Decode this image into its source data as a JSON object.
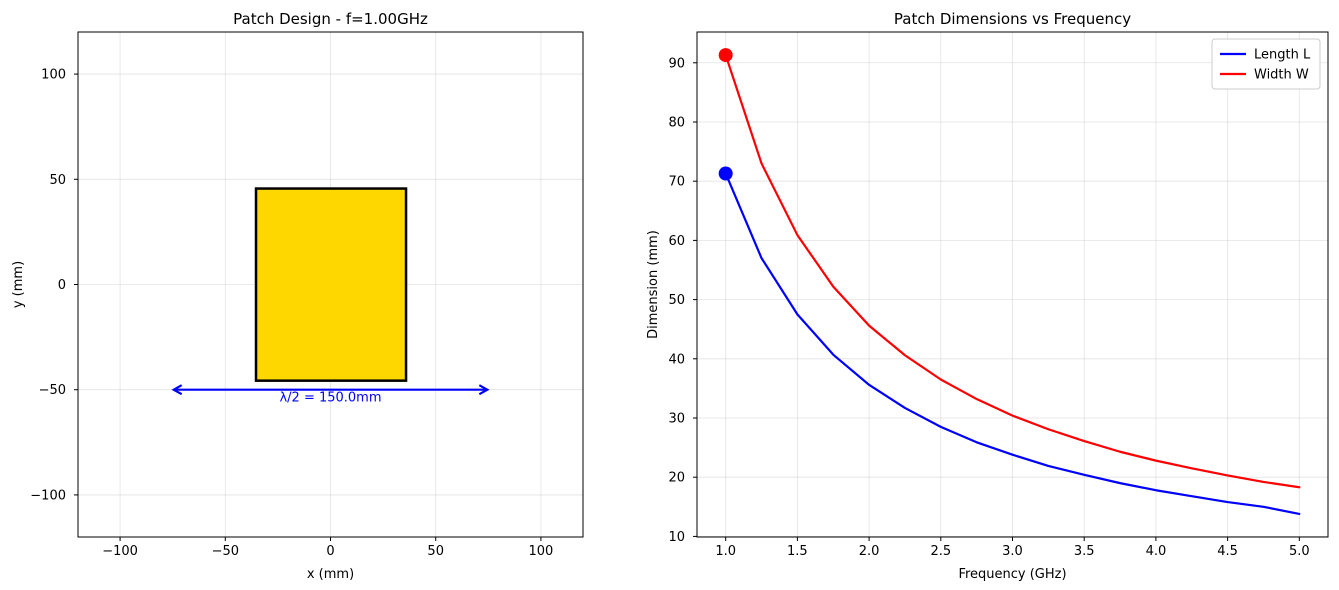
{
  "chart_data": [
    {
      "type": "diagram",
      "title": "Patch Design - f=1.00GHz",
      "xlabel": "x (mm)",
      "ylabel": "y (mm)",
      "xlim": [
        -120,
        120
      ],
      "ylim": [
        -120,
        120
      ],
      "xticks": [
        -100,
        -50,
        0,
        50,
        100
      ],
      "yticks": [
        -100,
        -50,
        0,
        50,
        100
      ],
      "xtick_labels": [
        "−100",
        "−50",
        "0",
        "50",
        "100"
      ],
      "ytick_labels": [
        "−100",
        "−50",
        "0",
        "50",
        "100"
      ],
      "grid": true,
      "patch": {
        "x0": -35.4,
        "y0": -45.7,
        "length": 71.3,
        "width": 91.3,
        "fill_color": "#FFD700",
        "edge_color": "#000000"
      },
      "arrow": {
        "x_start": -75,
        "x_end": 75,
        "y": -50,
        "color": "#0000FF",
        "label": "λ/2 = 150.0mm"
      }
    },
    {
      "type": "line",
      "title": "Patch Dimensions vs Frequency",
      "xlabel": "Frequency (GHz)",
      "ylabel": "Dimension (mm)",
      "xlim": [
        0.8,
        5.2
      ],
      "ylim": [
        9.9,
        95.2
      ],
      "xticks": [
        1.0,
        1.5,
        2.0,
        2.5,
        3.0,
        3.5,
        4.0,
        4.5,
        5.0
      ],
      "yticks": [
        10,
        20,
        30,
        40,
        50,
        60,
        70,
        80,
        90
      ],
      "xtick_labels": [
        "1.0",
        "1.5",
        "2.0",
        "2.5",
        "3.0",
        "3.5",
        "4.0",
        "4.5",
        "5.0"
      ],
      "ytick_labels": [
        "10",
        "20",
        "30",
        "40",
        "50",
        "60",
        "70",
        "80",
        "90"
      ],
      "grid": true,
      "legend_position": "top-right",
      "x": [
        1.0,
        1.25,
        1.5,
        1.75,
        2.0,
        2.25,
        2.5,
        2.75,
        3.0,
        3.25,
        3.5,
        3.75,
        4.0,
        4.25,
        4.5,
        4.75,
        5.0
      ],
      "series": [
        {
          "name": "Length L",
          "color": "#0000FF",
          "values": [
            71.3,
            57.0,
            47.5,
            40.7,
            35.6,
            31.7,
            28.5,
            25.9,
            23.8,
            21.9,
            20.4,
            19.0,
            17.8,
            16.8,
            15.8,
            15.0,
            13.8
          ]
        },
        {
          "name": "Width W",
          "color": "#FF0000",
          "values": [
            91.3,
            73.0,
            60.9,
            52.2,
            45.6,
            40.6,
            36.5,
            33.2,
            30.4,
            28.1,
            26.1,
            24.3,
            22.8,
            21.5,
            20.3,
            19.2,
            18.3
          ]
        }
      ],
      "markers": [
        {
          "series": "Length L",
          "x": 1.0,
          "y": 71.3
        },
        {
          "series": "Width W",
          "x": 1.0,
          "y": 91.3
        }
      ]
    }
  ]
}
